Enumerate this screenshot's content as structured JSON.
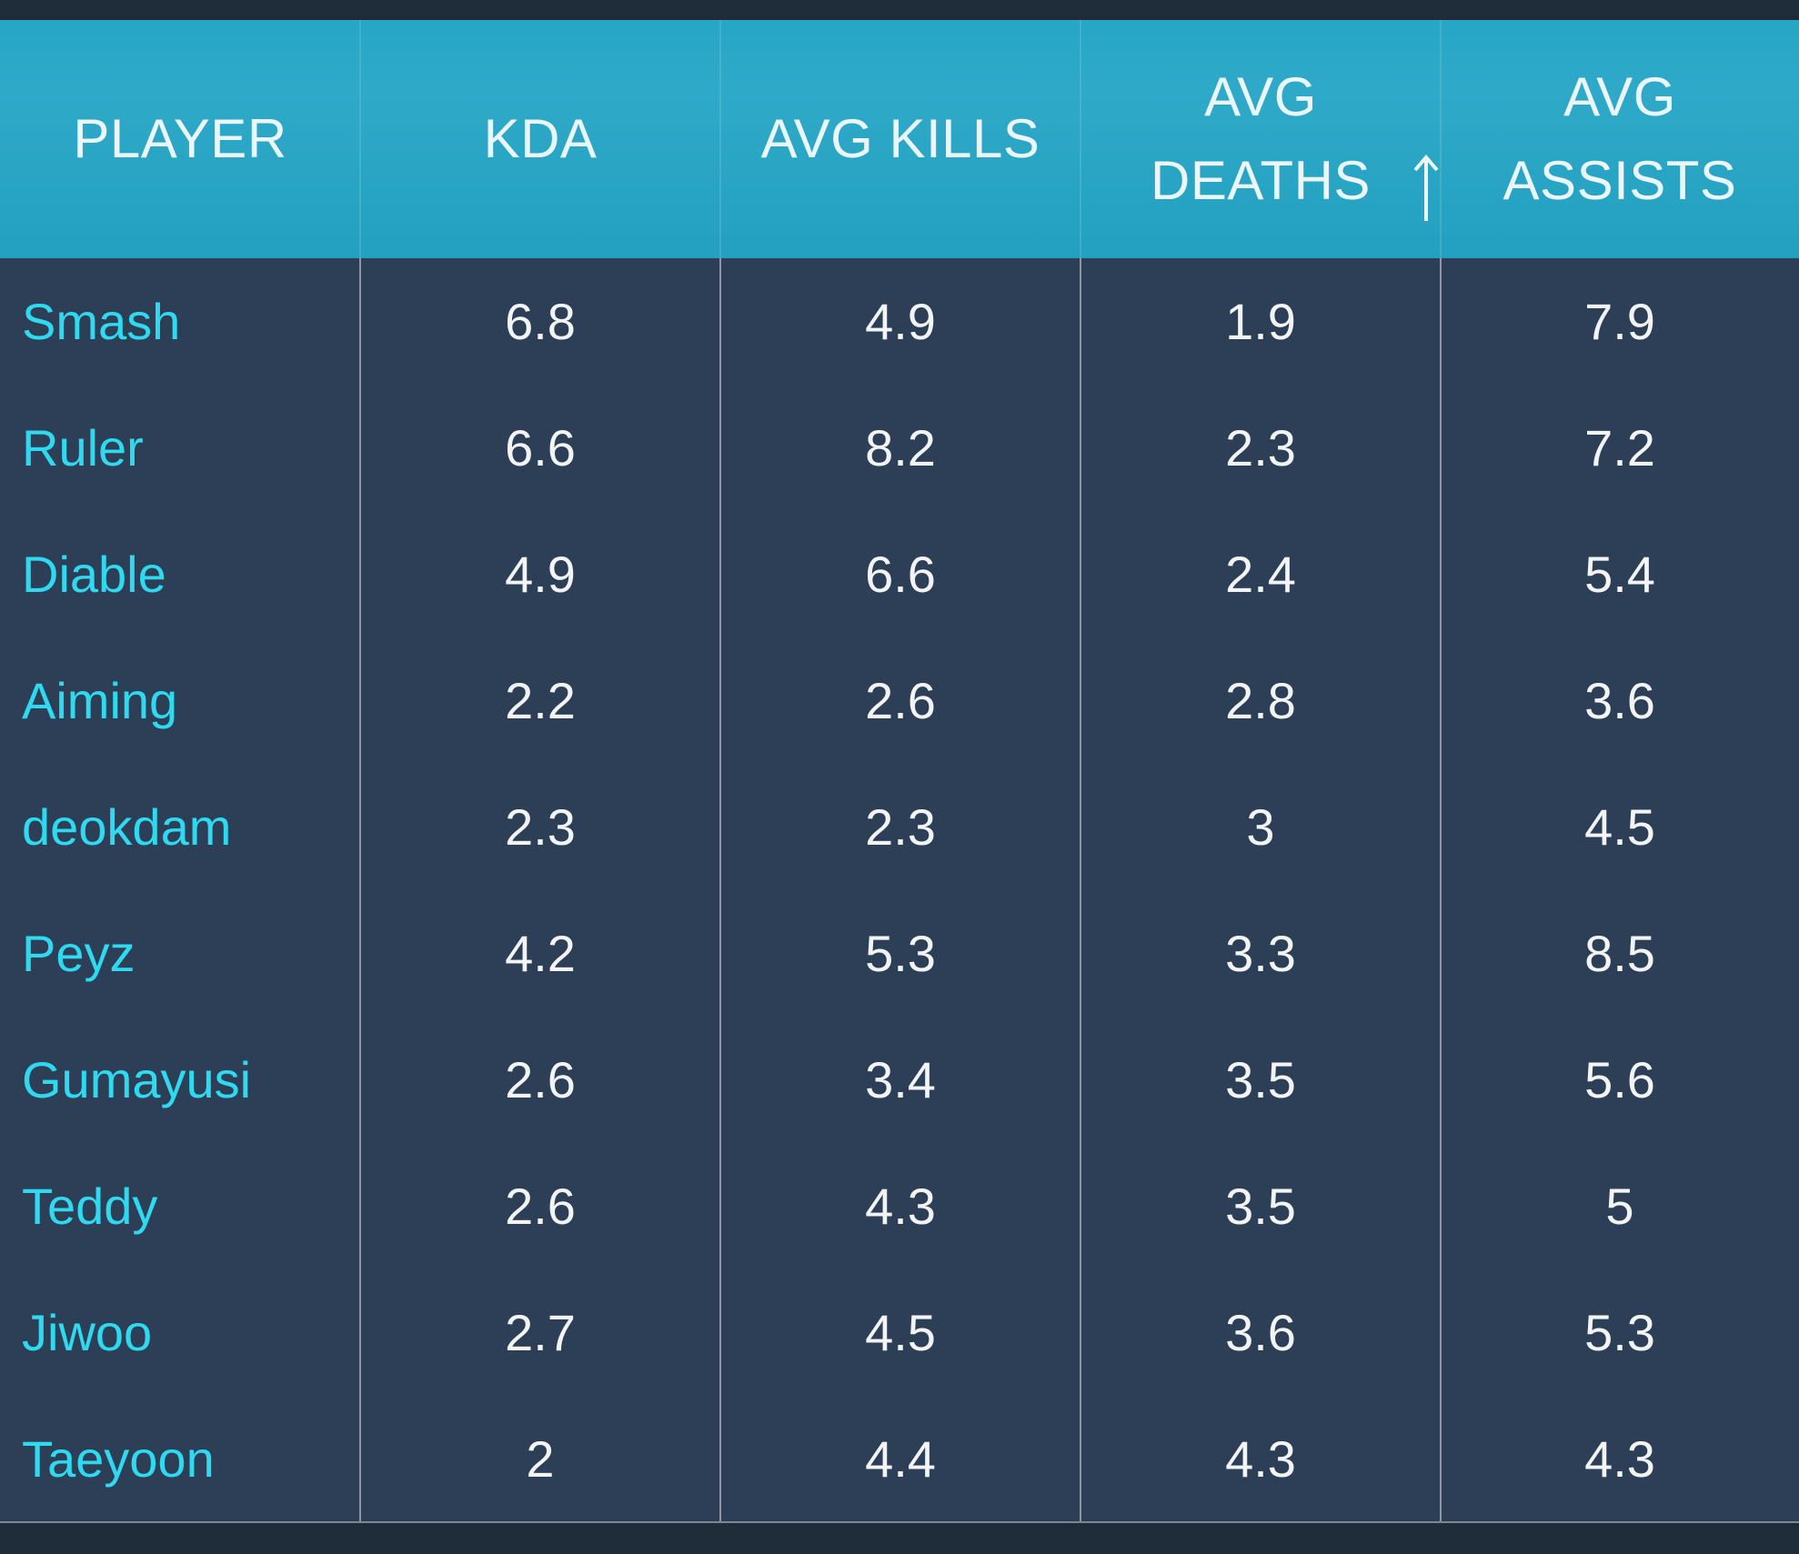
{
  "table": {
    "columns": [
      {
        "key": "player",
        "lines": [
          "PLAYER"
        ]
      },
      {
        "key": "kda",
        "lines": [
          "KDA"
        ]
      },
      {
        "key": "avg_kills",
        "lines": [
          "AVG KILLS"
        ]
      },
      {
        "key": "avg_deaths",
        "lines": [
          "AVG",
          "DEATHS"
        ],
        "sorted": "ascending",
        "sort_icon": "arrow-up-icon"
      },
      {
        "key": "avg_assists",
        "lines": [
          "AVG",
          "ASSISTS"
        ]
      }
    ],
    "rows": [
      {
        "player": "Smash",
        "kda": "6.8",
        "avg_kills": "4.9",
        "avg_deaths": "1.9",
        "avg_assists": "7.9"
      },
      {
        "player": "Ruler",
        "kda": "6.6",
        "avg_kills": "8.2",
        "avg_deaths": "2.3",
        "avg_assists": "7.2"
      },
      {
        "player": "Diable",
        "kda": "4.9",
        "avg_kills": "6.6",
        "avg_deaths": "2.4",
        "avg_assists": "5.4"
      },
      {
        "player": "Aiming",
        "kda": "2.2",
        "avg_kills": "2.6",
        "avg_deaths": "2.8",
        "avg_assists": "3.6"
      },
      {
        "player": "deokdam",
        "kda": "2.3",
        "avg_kills": "2.3",
        "avg_deaths": "3",
        "avg_assists": "4.5"
      },
      {
        "player": "Peyz",
        "kda": "4.2",
        "avg_kills": "5.3",
        "avg_deaths": "3.3",
        "avg_assists": "8.5"
      },
      {
        "player": "Gumayusi",
        "kda": "2.6",
        "avg_kills": "3.4",
        "avg_deaths": "3.5",
        "avg_assists": "5.6"
      },
      {
        "player": "Teddy",
        "kda": "2.6",
        "avg_kills": "4.3",
        "avg_deaths": "3.5",
        "avg_assists": "5"
      },
      {
        "player": "Jiwoo",
        "kda": "2.7",
        "avg_kills": "4.5",
        "avg_deaths": "3.6",
        "avg_assists": "5.3"
      },
      {
        "player": "Taeyoon",
        "kda": "2",
        "avg_kills": "4.4",
        "avg_deaths": "4.3",
        "avg_assists": "4.3"
      }
    ]
  },
  "colors": {
    "header_bg": "#23a0c0",
    "body_bg": "#2c3f56",
    "player_text": "#2fd9ef",
    "value_text": "#f2f4f6",
    "divider": "#8e97a2"
  }
}
